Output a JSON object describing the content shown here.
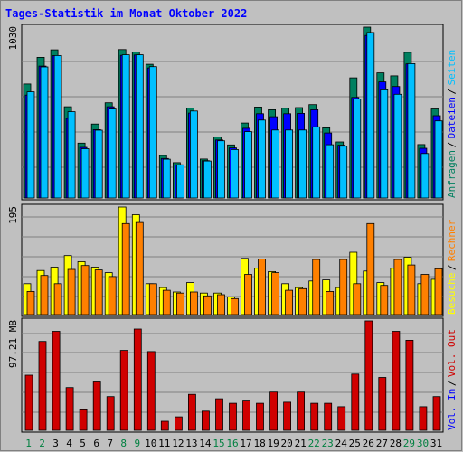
{
  "title": "Tages-Statistik im Monat Oktober 2022",
  "colors": {
    "background": "#C0C0C0",
    "title": "#0000FF",
    "grid": "#808080",
    "frame": "#000000",
    "anfragen": "#008060",
    "dateien": "#0000FF",
    "seiten": "#00C0FF",
    "besuche": "#FFFF00",
    "rechner": "#FF8000",
    "vol_in": "#0000FF",
    "vol_out": "#D00000",
    "weekday": "#000000",
    "weekend": "#008040"
  },
  "chart_data": [
    {
      "type": "bar",
      "name": "hits-pages",
      "max_label": "1030",
      "ylim": [
        0,
        1030
      ],
      "categories": [
        "1",
        "2",
        "3",
        "4",
        "5",
        "6",
        "7",
        "8",
        "9",
        "10",
        "11",
        "12",
        "13",
        "14",
        "15",
        "16",
        "17",
        "18",
        "19",
        "20",
        "21",
        "22",
        "23",
        "24",
        "25",
        "26",
        "27",
        "28",
        "29",
        "30",
        "31"
      ],
      "weekend": [
        1,
        2,
        8,
        9,
        15,
        16,
        22,
        23,
        29,
        30
      ],
      "side_legend": [
        {
          "text": "Anfragen",
          "color": "#008060"
        },
        {
          "text": "Dateien",
          "color": "#0000FF"
        },
        {
          "text": "Seiten",
          "color": "#00C0FF"
        }
      ],
      "series": [
        {
          "name": "Anfragen",
          "values": [
            687,
            848,
            893,
            550,
            331,
            446,
            574,
            895,
            880,
            806,
            256,
            213,
            542,
            235,
            368,
            320,
            452,
            548,
            532,
            541,
            545,
            563,
            423,
            338,
            724,
            1030,
            754,
            736,
            878,
            322,
            537
          ]
        },
        {
          "name": "Dateien",
          "values": [
            620,
            795,
            858,
            480,
            305,
            412,
            550,
            860,
            862,
            784,
            238,
            200,
            512,
            225,
            350,
            302,
            420,
            508,
            490,
            508,
            510,
            532,
            392,
            318,
            606,
            980,
            700,
            672,
            808,
            300,
            496
          ]
        },
        {
          "name": "Seiten",
          "values": [
            640,
            790,
            859,
            520,
            297,
            409,
            536,
            863,
            863,
            792,
            234,
            200,
            524,
            223,
            345,
            292,
            400,
            470,
            410,
            410,
            410,
            429,
            321,
            312,
            597,
            998,
            652,
            625,
            810,
            268,
            465
          ]
        }
      ]
    },
    {
      "type": "bar",
      "name": "visits-hosts",
      "max_label": "195",
      "ylim": [
        0,
        195
      ],
      "categories": [
        "1",
        "2",
        "3",
        "4",
        "5",
        "6",
        "7",
        "8",
        "9",
        "10",
        "11",
        "12",
        "13",
        "14",
        "15",
        "16",
        "17",
        "18",
        "19",
        "20",
        "21",
        "22",
        "23",
        "24",
        "25",
        "26",
        "27",
        "28",
        "29",
        "30",
        "31"
      ],
      "weekend": [
        1,
        2,
        8,
        9,
        15,
        16,
        22,
        23,
        29,
        30
      ],
      "side_legend": [
        {
          "text": "Besuche",
          "color": "#FFFF00"
        },
        {
          "text": "Rechner",
          "color": "#FF8000"
        }
      ],
      "series": [
        {
          "name": "Besuche",
          "values": [
            56,
            80,
            86,
            107,
            96,
            86,
            76,
            195,
            181,
            56,
            49,
            41,
            58,
            39,
            39,
            32,
            102,
            84,
            78,
            56,
            49,
            61,
            63,
            49,
            113,
            79,
            58,
            84,
            104,
            56,
            64
          ]
        },
        {
          "name": "Rechner",
          "values": [
            42,
            71,
            56,
            82,
            89,
            81,
            69,
            165,
            167,
            56,
            44,
            39,
            41,
            34,
            36,
            29,
            73,
            101,
            76,
            44,
            47,
            100,
            42,
            100,
            56,
            165,
            53,
            100,
            90,
            73,
            83
          ]
        }
      ]
    },
    {
      "type": "bar",
      "name": "volume",
      "max_label": "97.21 MB",
      "ylim": [
        0,
        97.21
      ],
      "categories": [
        "1",
        "2",
        "3",
        "4",
        "5",
        "6",
        "7",
        "8",
        "9",
        "10",
        "11",
        "12",
        "13",
        "14",
        "15",
        "16",
        "17",
        "18",
        "19",
        "20",
        "21",
        "22",
        "23",
        "24",
        "25",
        "26",
        "27",
        "28",
        "29",
        "30",
        "31"
      ],
      "weekend": [
        1,
        2,
        8,
        9,
        15,
        16,
        22,
        23,
        29,
        30
      ],
      "side_legend": [
        {
          "text": "Vol. In",
          "color": "#0000FF"
        },
        {
          "text": "Vol. Out",
          "color": "#D00000"
        }
      ],
      "series": [
        {
          "name": "Vol. Out",
          "values": [
            49,
            79,
            88,
            38,
            19,
            43,
            30,
            71,
            90,
            70,
            8,
            12,
            32,
            17,
            28,
            24,
            26,
            24,
            34,
            25,
            34,
            24,
            24,
            21,
            50,
            97.21,
            47,
            88,
            80,
            21,
            30
          ]
        }
      ]
    }
  ]
}
